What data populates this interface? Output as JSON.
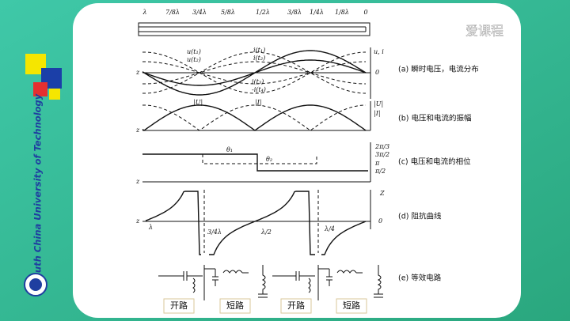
{
  "logo": "爱课程",
  "university": "South China University of Technology",
  "scale": [
    "λ",
    "7/8λ",
    "3/4λ",
    "5/8λ",
    "1/2λ",
    "3/8λ",
    "1/4λ",
    "1/8λ",
    "0"
  ],
  "panels": [
    {
      "caption": "(a) 瞬时电压，电流分布",
      "labels": [
        "u(t₁)",
        "u(t₂)",
        "i(t₁)",
        "i(t₂)",
        "i(t₃)",
        "-i(t₄)",
        "u, i",
        "0",
        "z"
      ]
    },
    {
      "caption": "(b) 电压和电流的振幅",
      "labels": [
        "|U|",
        "|I|",
        "|U|",
        "|I|",
        "z"
      ]
    },
    {
      "caption": "(c) 电压和电流的相位",
      "labels": [
        "θ₁",
        "θ₂",
        "2π/3",
        "3π/2",
        "π",
        "π/2",
        "z"
      ]
    },
    {
      "caption": "(d) 阻抗曲线",
      "labels": [
        "Z",
        "0",
        "z",
        "λ",
        "3/4λ",
        "λ/2",
        "λ/4"
      ]
    },
    {
      "caption": "(e) 等效电路",
      "labels": []
    }
  ],
  "circuits": [
    "开路",
    "短路",
    "开路",
    "短路"
  ]
}
